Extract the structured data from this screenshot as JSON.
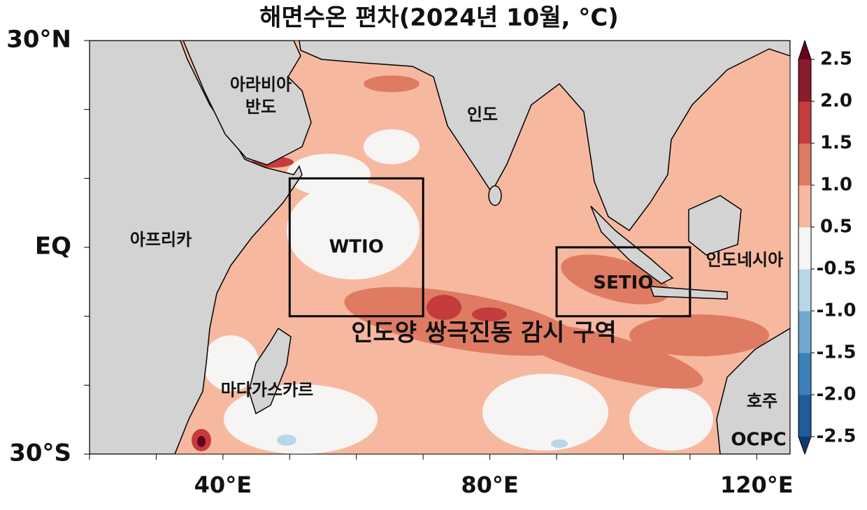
{
  "title": "해면수온 편차(2024년 10월, °C)",
  "map": {
    "lon_range": [
      20,
      125
    ],
    "lat_range": [
      -30,
      30
    ],
    "lon_ticks": [
      {
        "value": 40,
        "label": "40°E"
      },
      {
        "value": 80,
        "label": "80°E"
      },
      {
        "value": 120,
        "label": "120°E"
      }
    ],
    "lon_minor_ticks": [
      20,
      30,
      50,
      60,
      70,
      90,
      100,
      110
    ],
    "lat_ticks": [
      {
        "value": 30,
        "label": "30°N"
      },
      {
        "value": 0,
        "label": "EQ"
      },
      {
        "value": -30,
        "label": "30°S"
      }
    ],
    "lat_minor_ticks": [
      20,
      10,
      -10,
      -20
    ],
    "boxes": [
      {
        "label": "WTIO",
        "lon": [
          50,
          70
        ],
        "lat": [
          -10,
          10
        ]
      },
      {
        "label": "SETIO",
        "lon": [
          90,
          110
        ],
        "lat": [
          -10,
          0
        ]
      }
    ],
    "region_labels": {
      "arabia": [
        "아라비아",
        "반도"
      ],
      "india": "인도",
      "africa": "아프리카",
      "indonesia": "인도네시아",
      "madagascar": "마다가스카르",
      "australia": "호주",
      "iod": "인도양 쌍극진동 감시 구역"
    },
    "logo": "OCPC"
  },
  "colorbar": {
    "ticks": [
      {
        "value": -2.5,
        "label": "-2.5"
      },
      {
        "value": -2,
        "label": "-2.0"
      },
      {
        "value": -1.5,
        "label": "-1.5"
      },
      {
        "value": -1,
        "label": "-1.0"
      },
      {
        "value": -0.5,
        "label": "-0.5"
      },
      {
        "value": 0.5,
        "label": "0.5"
      },
      {
        "value": 1,
        "label": "1.0"
      },
      {
        "value": 1.5,
        "label": "1.5"
      },
      {
        "value": 2,
        "label": "2.0"
      },
      {
        "value": 2.5,
        "label": "2.5"
      }
    ],
    "colors": [
      "#1f5c99",
      "#3b7fb8",
      "#6fa8d1",
      "#b8d6e8",
      "#f7f4f4",
      "#f6b9a0",
      "#e07b63",
      "#c43c3c",
      "#8b1a2b"
    ],
    "under": "#0d3a6e",
    "over": "#67001f"
  }
}
